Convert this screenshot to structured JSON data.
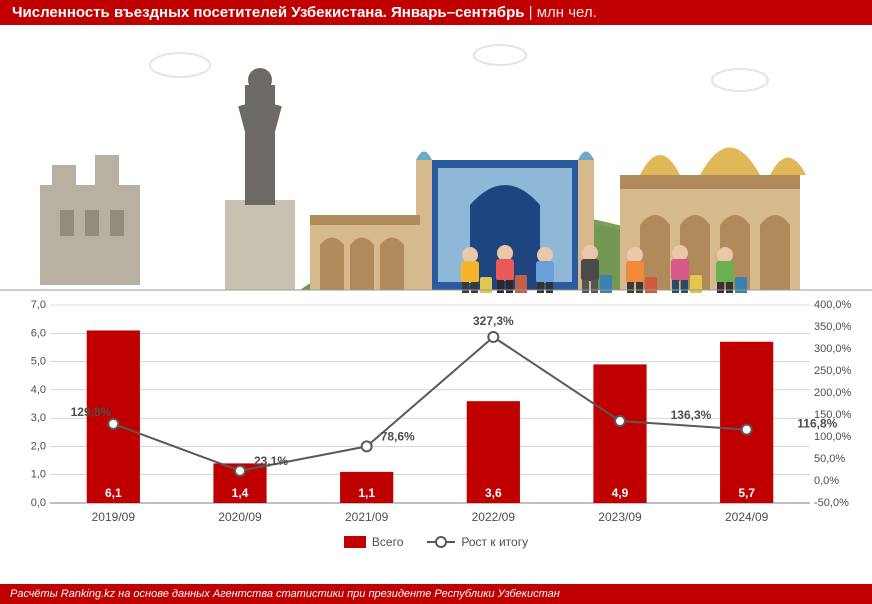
{
  "header": {
    "title": "Численность въездных посетителей Узбекистана. Январь–сентябрь",
    "unit_label": "млн чел."
  },
  "chart": {
    "type": "bar+line",
    "categories": [
      "2019/09",
      "2020/09",
      "2021/09",
      "2022/09",
      "2023/09",
      "2024/09"
    ],
    "bars": {
      "values": [
        6.1,
        1.4,
        1.1,
        3.6,
        4.9,
        5.7
      ],
      "labels": [
        "6,1",
        "1,4",
        "1,1",
        "3,6",
        "4,9",
        "5,7"
      ],
      "color": "#c00000",
      "value_text_color": "#ffffff",
      "value_fontsize": 12,
      "bar_width_ratio": 0.42
    },
    "line": {
      "values": [
        129.8,
        23.1,
        78.6,
        327.3,
        136.3,
        116.8
      ],
      "labels": [
        "129,8%",
        "23,1%",
        "78,6%",
        "327,3%",
        "136,3%",
        "116,8%"
      ],
      "stroke": "#595959",
      "stroke_width": 2,
      "marker_fill": "#ffffff",
      "marker_stroke": "#595959",
      "marker_radius": 5,
      "label_fontsize": 12,
      "label_color": "#4d4d4d"
    },
    "left_axis": {
      "min": 0.0,
      "max": 7.0,
      "step": 1.0,
      "ticks": [
        "0,0",
        "1,0",
        "2,0",
        "3,0",
        "4,0",
        "5,0",
        "6,0",
        "7,0"
      ],
      "label_fontsize": 11,
      "label_color": "#4d4d4d"
    },
    "right_axis": {
      "min": -50.0,
      "max": 400.0,
      "step": 50.0,
      "ticks": [
        "-50,0%",
        "0,0%",
        "50,0%",
        "100,0%",
        "150,0%",
        "200,0%",
        "250,0%",
        "300,0%",
        "350,0%",
        "400,0%"
      ],
      "label_fontsize": 11,
      "label_color": "#4d4d4d"
    },
    "grid_color": "#bfbfbf",
    "axis_color": "#808080",
    "background": "#ffffff",
    "category_fontsize": 12,
    "legend": {
      "bar_label": "Всего",
      "line_label": "Рост к итогу"
    }
  },
  "footer": {
    "text": "Расчёты Ranking.kz на основе данных Агентства статистики при президенте Республики Узбекистан"
  },
  "illustration": {
    "sky": "#ffffff",
    "cloud": "#dfe6ea",
    "hill": "#7aa05a",
    "hill_shadow": "#5d7f42",
    "dome_gold": "#e0b85a",
    "dome_blue": "#6fa8c9",
    "wall_tan": "#d6b98c",
    "wall_brown": "#b08a5a",
    "stone": "#b8b0a0",
    "statue": "#6d6a66",
    "portal_blue": "#2a5aa0",
    "portal_tile": "#8fb8d8",
    "tourist_colors": [
      "#e85a5a",
      "#f5b52a",
      "#6aa0d8",
      "#4a4a4a",
      "#f08a3a",
      "#d85a8a",
      "#6ab050"
    ],
    "luggage_colors": [
      "#e0c850",
      "#c06048",
      "#3a80b0",
      "#d05a3a"
    ]
  }
}
